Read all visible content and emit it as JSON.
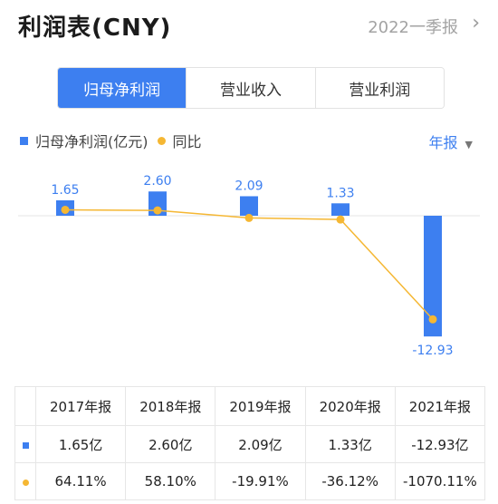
{
  "header": {
    "title": "利润表(CNY)",
    "period": "2022一季报"
  },
  "tabs": [
    {
      "label": "归母净利润",
      "active": true
    },
    {
      "label": "营业收入",
      "active": false
    },
    {
      "label": "营业利润",
      "active": false
    }
  ],
  "legend": {
    "bar_label": "归母净利润(亿元)",
    "line_label": "同比"
  },
  "report_select": {
    "label": "年报"
  },
  "colors": {
    "accent": "#3d7ff0",
    "line": "#f5b733",
    "positive": "#e54b4b",
    "negative": "#1aa870"
  },
  "chart_data": {
    "type": "bar",
    "categories": [
      "2017年报",
      "2018年报",
      "2019年报",
      "2020年报",
      "2021年报"
    ],
    "series": [
      {
        "name": "归母净利润(亿元)",
        "type": "bar",
        "values": [
          1.65,
          2.6,
          2.09,
          1.33,
          -12.93
        ],
        "labels": [
          "1.65",
          "2.60",
          "2.09",
          "1.33",
          "-12.93"
        ]
      },
      {
        "name": "同比",
        "type": "line",
        "values": [
          64.11,
          58.1,
          -19.91,
          -36.12,
          -1070.11
        ]
      }
    ]
  },
  "table": {
    "headers": [
      "2017年报",
      "2018年报",
      "2019年报",
      "2020年报",
      "2021年报"
    ],
    "values": [
      "1.65亿",
      "2.60亿",
      "2.09亿",
      "1.33亿",
      "-12.93亿"
    ],
    "yoy": [
      "64.11%",
      "58.10%",
      "-19.91%",
      "-36.12%",
      "-1070.11%"
    ]
  }
}
